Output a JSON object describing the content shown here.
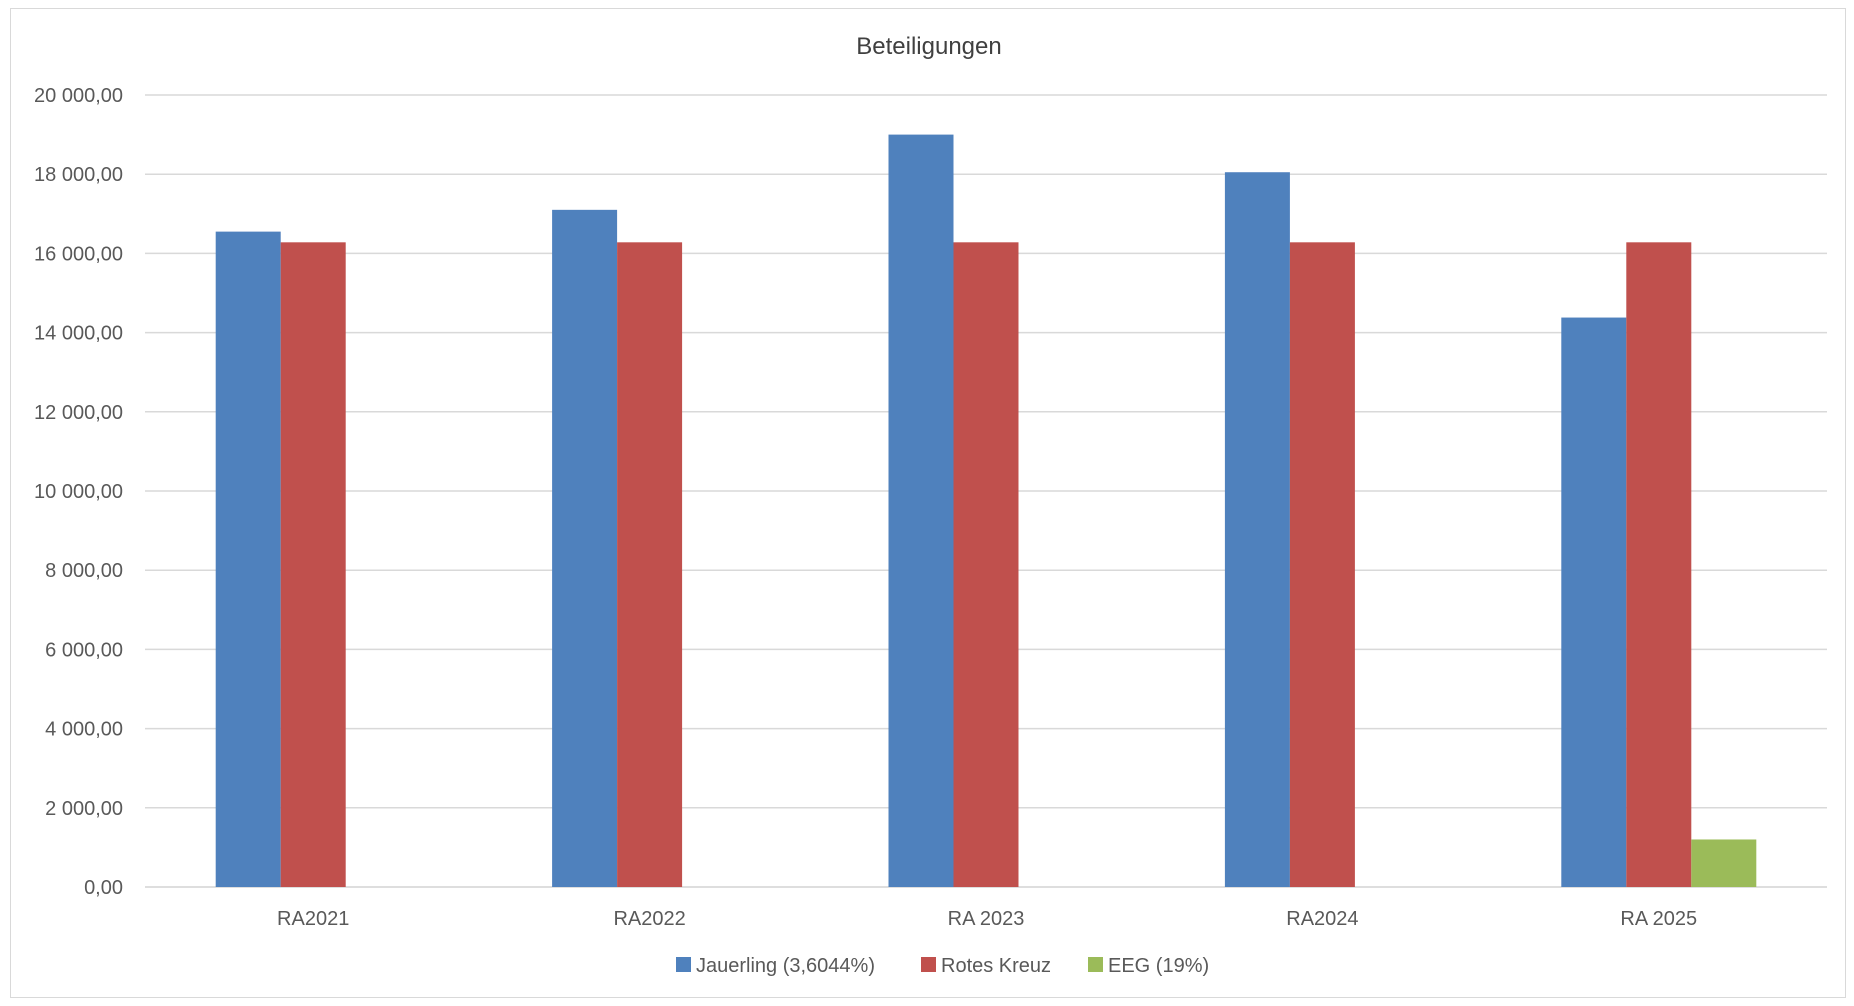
{
  "chart_data": {
    "type": "bar",
    "title": "Beteiligungen",
    "categories": [
      "RA2021",
      "RA2022",
      "RA 2023",
      "RA2024",
      "RA 2025"
    ],
    "series": [
      {
        "name": "Jauerling (3,6044%)",
        "color": "#4f81bd",
        "values": [
          16550,
          17100,
          19000,
          18050,
          14380
        ]
      },
      {
        "name": "Rotes Kreuz",
        "color": "#c0504d",
        "values": [
          16280,
          16280,
          16280,
          16280,
          16280
        ]
      },
      {
        "name": "EEG (19%)",
        "color": "#9bbb59",
        "values": [
          null,
          null,
          null,
          null,
          1200
        ]
      }
    ],
    "ylim": [
      0,
      20000
    ],
    "yticks": [
      0,
      2000,
      4000,
      6000,
      8000,
      10000,
      12000,
      14000,
      16000,
      18000,
      20000
    ],
    "ytick_labels": [
      "0,00",
      "2 000,00",
      "4 000,00",
      "6 000,00",
      "8 000,00",
      "10 000,00",
      "12 000,00",
      "14 000,00",
      "16 000,00",
      "18 000,00",
      "20 000,00"
    ],
    "grid": true,
    "legend_position": "bottom"
  }
}
